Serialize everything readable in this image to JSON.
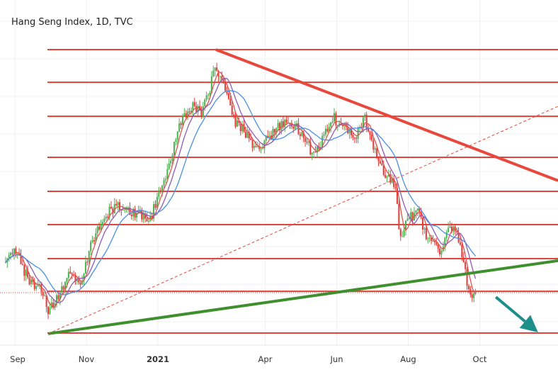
{
  "chart_data": {
    "type": "candlestick",
    "title": "Hang Seng Index, 1D, TVC",
    "x_unit": "months since Sep 2020",
    "xlim": [
      -0.26,
      15.2
    ],
    "ylim": [
      22100,
      31900
    ],
    "x_ticks": [
      {
        "label": "Sep",
        "x": 0,
        "bold": false
      },
      {
        "label": "Nov",
        "x": 2,
        "bold": false
      },
      {
        "label": "2021",
        "x": 4,
        "bold": true
      },
      {
        "label": "Apr",
        "x": 7,
        "bold": false
      },
      {
        "label": "Jun",
        "x": 9,
        "bold": false
      },
      {
        "label": "Aug",
        "x": 11,
        "bold": false
      },
      {
        "label": "Oct",
        "x": 13,
        "bold": false
      }
    ],
    "price_path": [
      [
        -0.26,
        24625
      ],
      [
        -0.02,
        25050
      ],
      [
        0.38,
        24100
      ],
      [
        0.77,
        23770
      ],
      [
        0.93,
        23140
      ],
      [
        1.13,
        23450
      ],
      [
        1.47,
        24200
      ],
      [
        1.86,
        24100
      ],
      [
        2.16,
        25260
      ],
      [
        2.55,
        26100
      ],
      [
        2.95,
        26330
      ],
      [
        3.35,
        26100
      ],
      [
        3.78,
        25900
      ],
      [
        4.04,
        26750
      ],
      [
        4.34,
        27600
      ],
      [
        4.63,
        28880
      ],
      [
        4.93,
        29300
      ],
      [
        5.23,
        29090
      ],
      [
        5.43,
        29730
      ],
      [
        5.62,
        30580
      ],
      [
        5.82,
        29940
      ],
      [
        6.12,
        28880
      ],
      [
        6.42,
        28560
      ],
      [
        6.71,
        28025
      ],
      [
        7.01,
        28240
      ],
      [
        7.31,
        28660
      ],
      [
        7.6,
        28770
      ],
      [
        7.9,
        28660
      ],
      [
        8.3,
        27920
      ],
      [
        8.59,
        28240
      ],
      [
        8.89,
        28980
      ],
      [
        9.19,
        28660
      ],
      [
        9.49,
        28340
      ],
      [
        9.78,
        28980
      ],
      [
        9.98,
        28240
      ],
      [
        10.28,
        27390
      ],
      [
        10.48,
        27175
      ],
      [
        10.67,
        26750
      ],
      [
        10.77,
        25260
      ],
      [
        10.97,
        25900
      ],
      [
        11.27,
        26110
      ],
      [
        11.56,
        25260
      ],
      [
        11.86,
        24940
      ],
      [
        12.16,
        25680
      ],
      [
        12.36,
        25580
      ],
      [
        12.55,
        24625
      ],
      [
        12.71,
        23560
      ],
      [
        12.89,
        23770
      ]
    ],
    "moving_averages": [
      {
        "name": "MA short",
        "period": 5,
        "color": "#e0534f"
      },
      {
        "name": "MA mid",
        "period": 10,
        "color": "#8e5bb5"
      },
      {
        "name": "MA long",
        "period": 20,
        "color": "#4a90e2"
      }
    ],
    "horizontal_levels": [
      31000,
      30020,
      29000,
      27770,
      26750,
      25750,
      24730,
      23750,
      22500
    ],
    "current_price": 23710,
    "trendlines": [
      {
        "name": "resistance",
        "color": "#e8473b",
        "from": [
          5.62,
          31000
        ],
        "to": [
          15.19,
          27070
        ],
        "style": "solid",
        "width": 4
      },
      {
        "name": "support",
        "color": "#3f8f2e",
        "from": [
          0.93,
          22480
        ],
        "to": [
          15.19,
          24670
        ],
        "style": "solid",
        "width": 4
      },
      {
        "name": "channel",
        "color": "#e8473b",
        "from": [
          0.93,
          22480
        ],
        "to": [
          15.19,
          29300
        ],
        "style": "dashed",
        "width": 1
      }
    ],
    "arrow": {
      "color": "#1e8e8a",
      "from": [
        13.45,
        23580
      ],
      "to": [
        14.63,
        22520
      ]
    },
    "colors": {
      "up": "#4caf50",
      "down": "#e53935",
      "level": "#e0443a",
      "grid": "#f0f0f0"
    }
  }
}
